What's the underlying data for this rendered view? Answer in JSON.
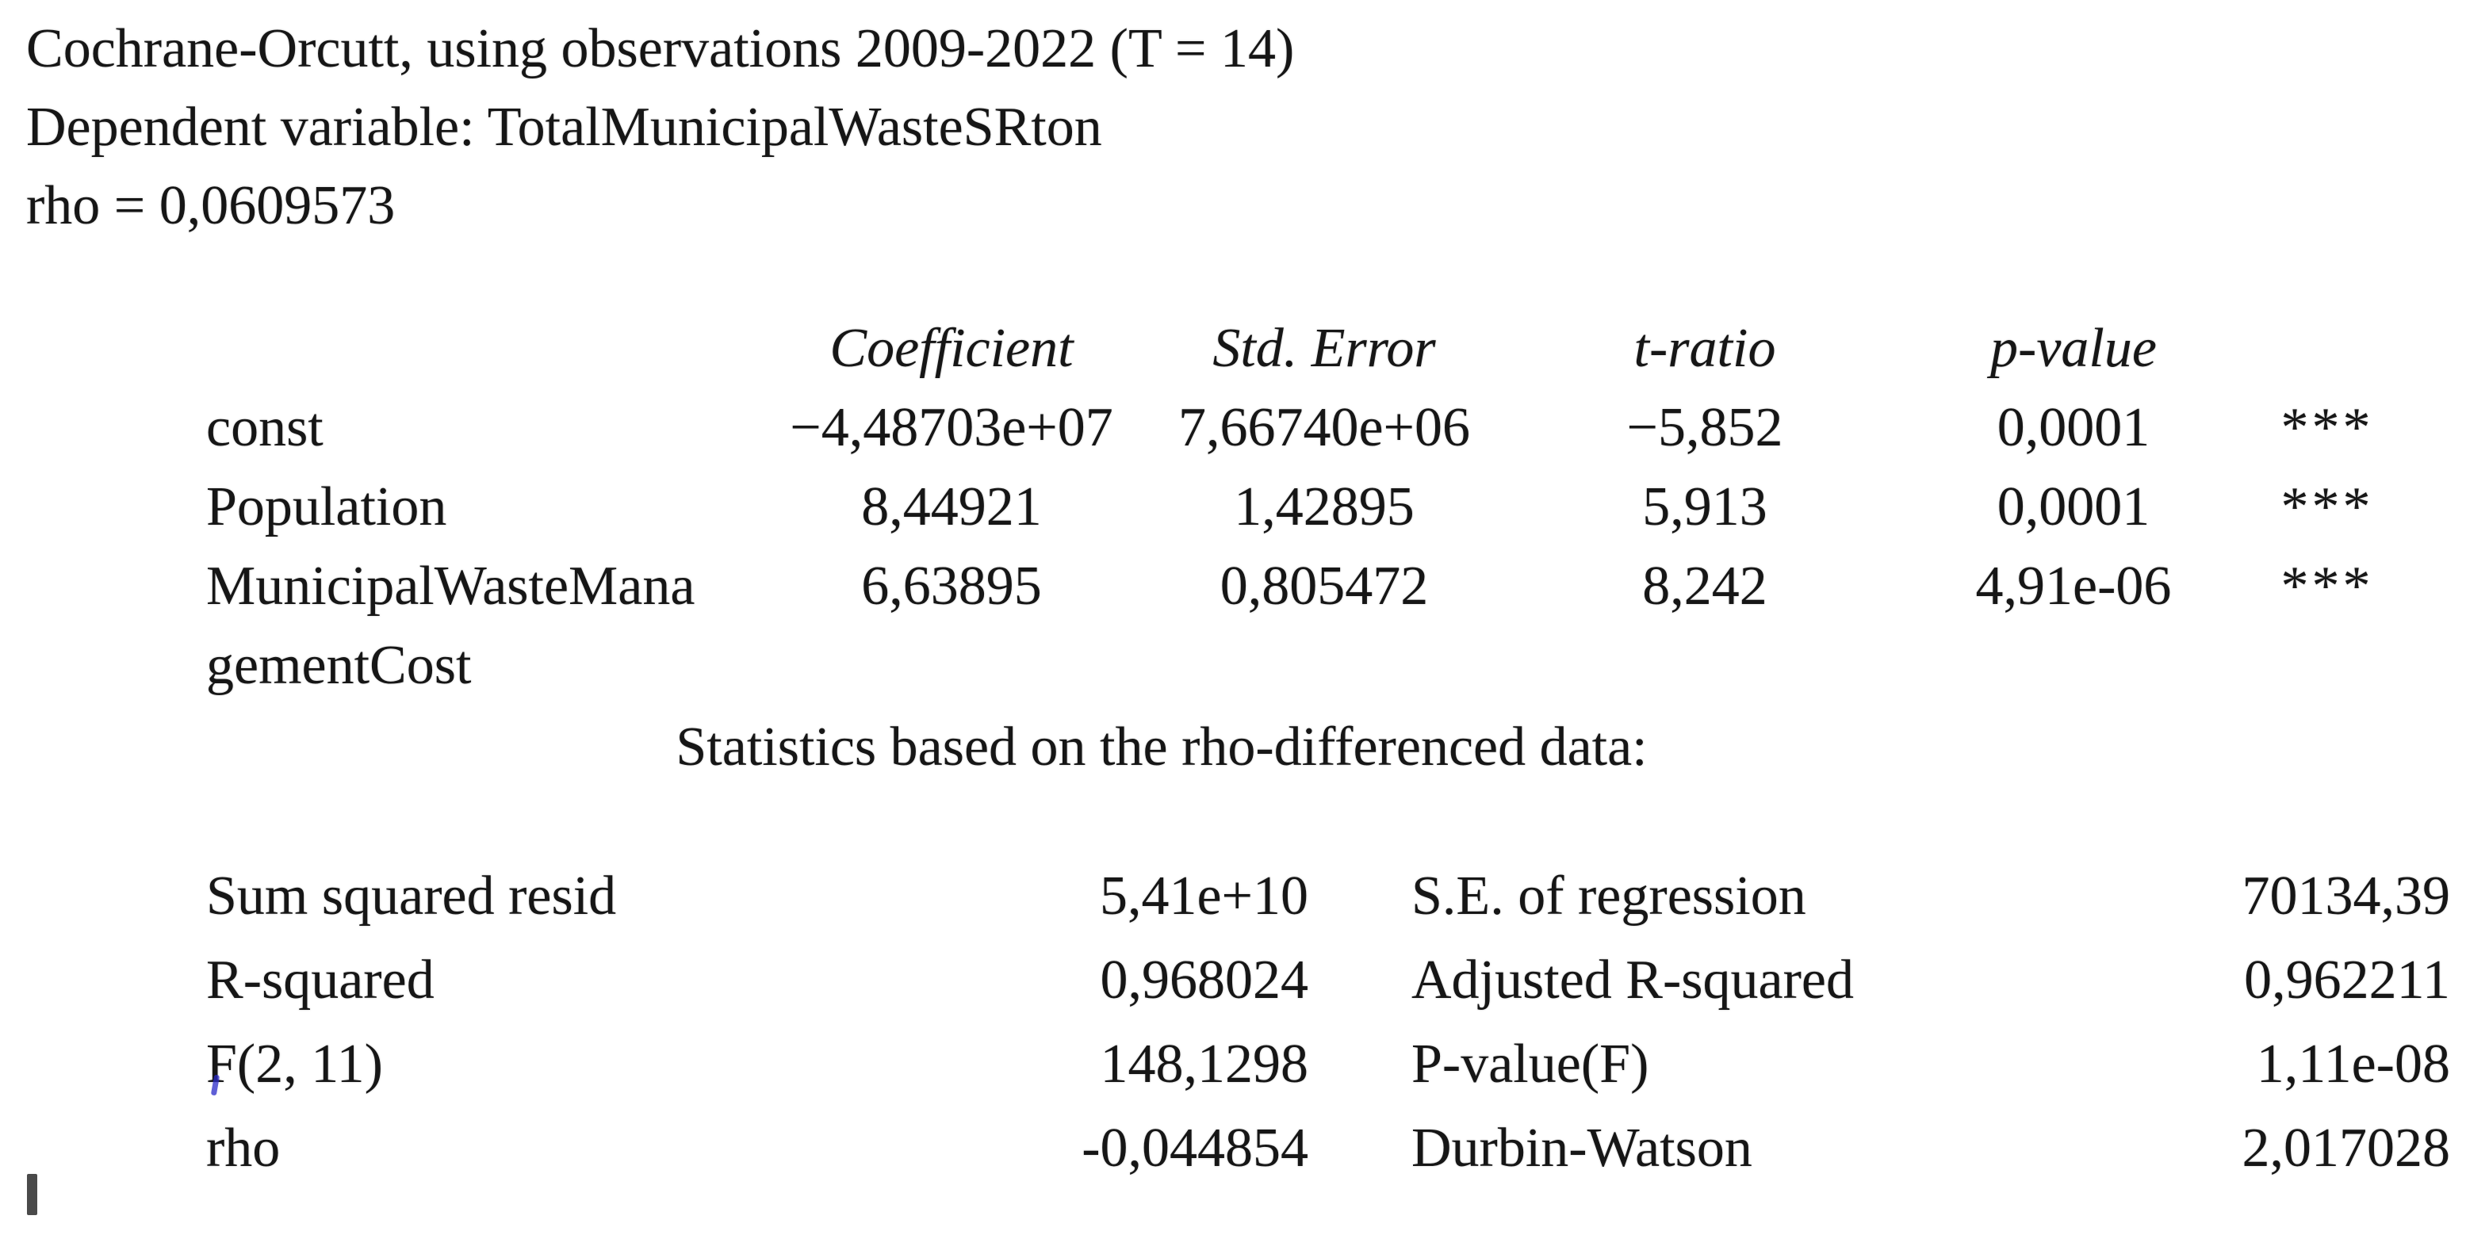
{
  "header": {
    "line1": "Cochrane-Orcutt, using observations 2009-2022 (T = 14)",
    "line2": "Dependent variable: TotalMunicipalWasteSRton",
    "line3": "rho = 0,0609573"
  },
  "coef_table": {
    "col_coefficient": "Coefficient",
    "col_std_error": "Std. Error",
    "col_t_ratio": "t-ratio",
    "col_p_value": "p-value",
    "rows": [
      {
        "variable": "const",
        "coefficient": "−4,48703e+07",
        "std_error": "7,66740e+06",
        "t_ratio": "−5,852",
        "p_value": "0,0001",
        "significance": "***"
      },
      {
        "variable": "Population",
        "coefficient": "8,44921",
        "std_error": "1,42895",
        "t_ratio": "5,913",
        "p_value": "0,0001",
        "significance": "***"
      },
      {
        "variable": "MunicipalWasteMana\ngementCost",
        "coefficient": "6,63895",
        "std_error": "0,805472",
        "t_ratio": "8,242",
        "p_value": "4,91e-06",
        "significance": "***"
      }
    ]
  },
  "caption": "Statistics based on the rho-differenced data:",
  "stats_table": {
    "rows": [
      {
        "label_left": "Sum squared resid",
        "value_left": "5,41e+10",
        "label_right": "S.E. of regression",
        "value_right": "70134,39"
      },
      {
        "label_left": "R-squared",
        "value_left": "0,968024",
        "label_right": "Adjusted R-squared",
        "value_right": "0,962211"
      },
      {
        "label_left": "F(2, 11)",
        "value_left": "148,1298",
        "label_right": "P-value(F)",
        "value_right": "1,11e-08"
      },
      {
        "label_left": "rho",
        "value_left": "-0,044854",
        "label_right": "Durbin-Watson",
        "value_right": "2,017028"
      }
    ]
  }
}
